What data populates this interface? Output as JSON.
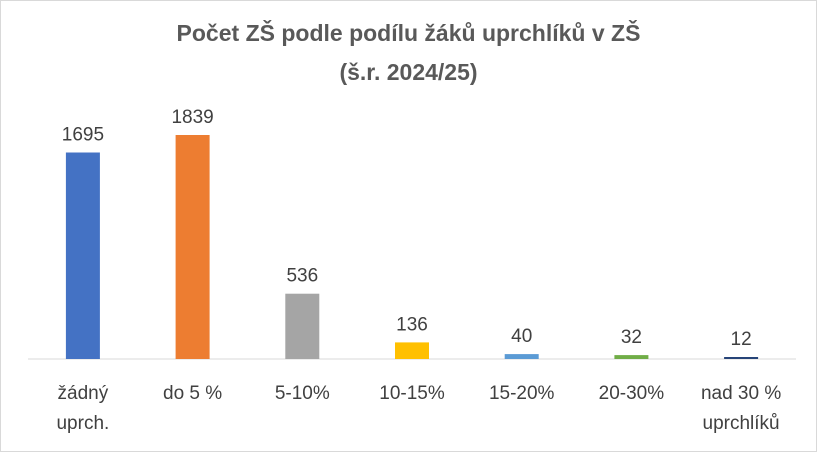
{
  "chart_data": {
    "type": "bar",
    "title": "Počet ZŠ podle podílu žáků uprchlíků v ZŠ",
    "subtitle": "(š.r. 2024/25)",
    "categories": [
      [
        "žádný",
        "uprch."
      ],
      [
        "do 5 %"
      ],
      [
        "5-10%"
      ],
      [
        "10-15%"
      ],
      [
        "15-20%"
      ],
      [
        "20-30%"
      ],
      [
        "nad 30 %",
        "uprchlíků"
      ]
    ],
    "values": [
      1695,
      1839,
      536,
      136,
      40,
      32,
      12
    ],
    "data_labels": [
      "1695",
      "1839",
      "536",
      "136",
      "40",
      "32",
      "12"
    ],
    "colors": [
      "#4472c4",
      "#ed7d31",
      "#a5a5a5",
      "#ffc000",
      "#5b9bd5",
      "#70ad47",
      "#264478"
    ],
    "ylim": [
      0,
      1839
    ],
    "xlabel": "",
    "ylabel": "",
    "grid": false,
    "legend": "none"
  }
}
